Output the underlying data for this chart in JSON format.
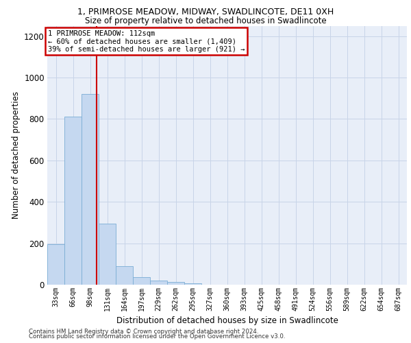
{
  "title_line1": "1, PRIMROSE MEADOW, MIDWAY, SWADLINCOTE, DE11 0XH",
  "title_line2": "Size of property relative to detached houses in Swadlincote",
  "xlabel": "Distribution of detached houses by size in Swadlincote",
  "ylabel": "Number of detached properties",
  "footnote1": "Contains HM Land Registry data © Crown copyright and database right 2024.",
  "footnote2": "Contains public sector information licensed under the Open Government Licence v3.0.",
  "bar_color": "#c5d8f0",
  "bar_edge_color": "#7aadd4",
  "grid_color": "#c8d4e8",
  "background_color": "#e8eef8",
  "annotation_box_color": "#ffffff",
  "annotation_border_color": "#cc0000",
  "vline_color": "#cc0000",
  "annotation_text_line1": "1 PRIMROSE MEADOW: 112sqm",
  "annotation_text_line2": "← 60% of detached houses are smaller (1,409)",
  "annotation_text_line3": "39% of semi-detached houses are larger (921) →",
  "property_size_sqm": 112,
  "categories": [
    "33sqm",
    "66sqm",
    "98sqm",
    "131sqm",
    "164sqm",
    "197sqm",
    "229sqm",
    "262sqm",
    "295sqm",
    "327sqm",
    "360sqm",
    "393sqm",
    "425sqm",
    "458sqm",
    "491sqm",
    "524sqm",
    "556sqm",
    "589sqm",
    "622sqm",
    "654sqm",
    "687sqm"
  ],
  "bin_edges": [
    16.5,
    49.5,
    82.5,
    115.5,
    148.5,
    181.5,
    214.5,
    247.5,
    280.5,
    313.5,
    346.5,
    379.5,
    412.5,
    445.5,
    478.5,
    511.5,
    544.5,
    577.5,
    610.5,
    643.5,
    676.5,
    709.5
  ],
  "values": [
    197,
    810,
    921,
    295,
    90,
    38,
    20,
    12,
    5,
    0,
    0,
    0,
    0,
    0,
    0,
    0,
    0,
    0,
    0,
    0,
    0
  ],
  "ylim": [
    0,
    1250
  ],
  "yticks": [
    0,
    200,
    400,
    600,
    800,
    1000,
    1200
  ]
}
